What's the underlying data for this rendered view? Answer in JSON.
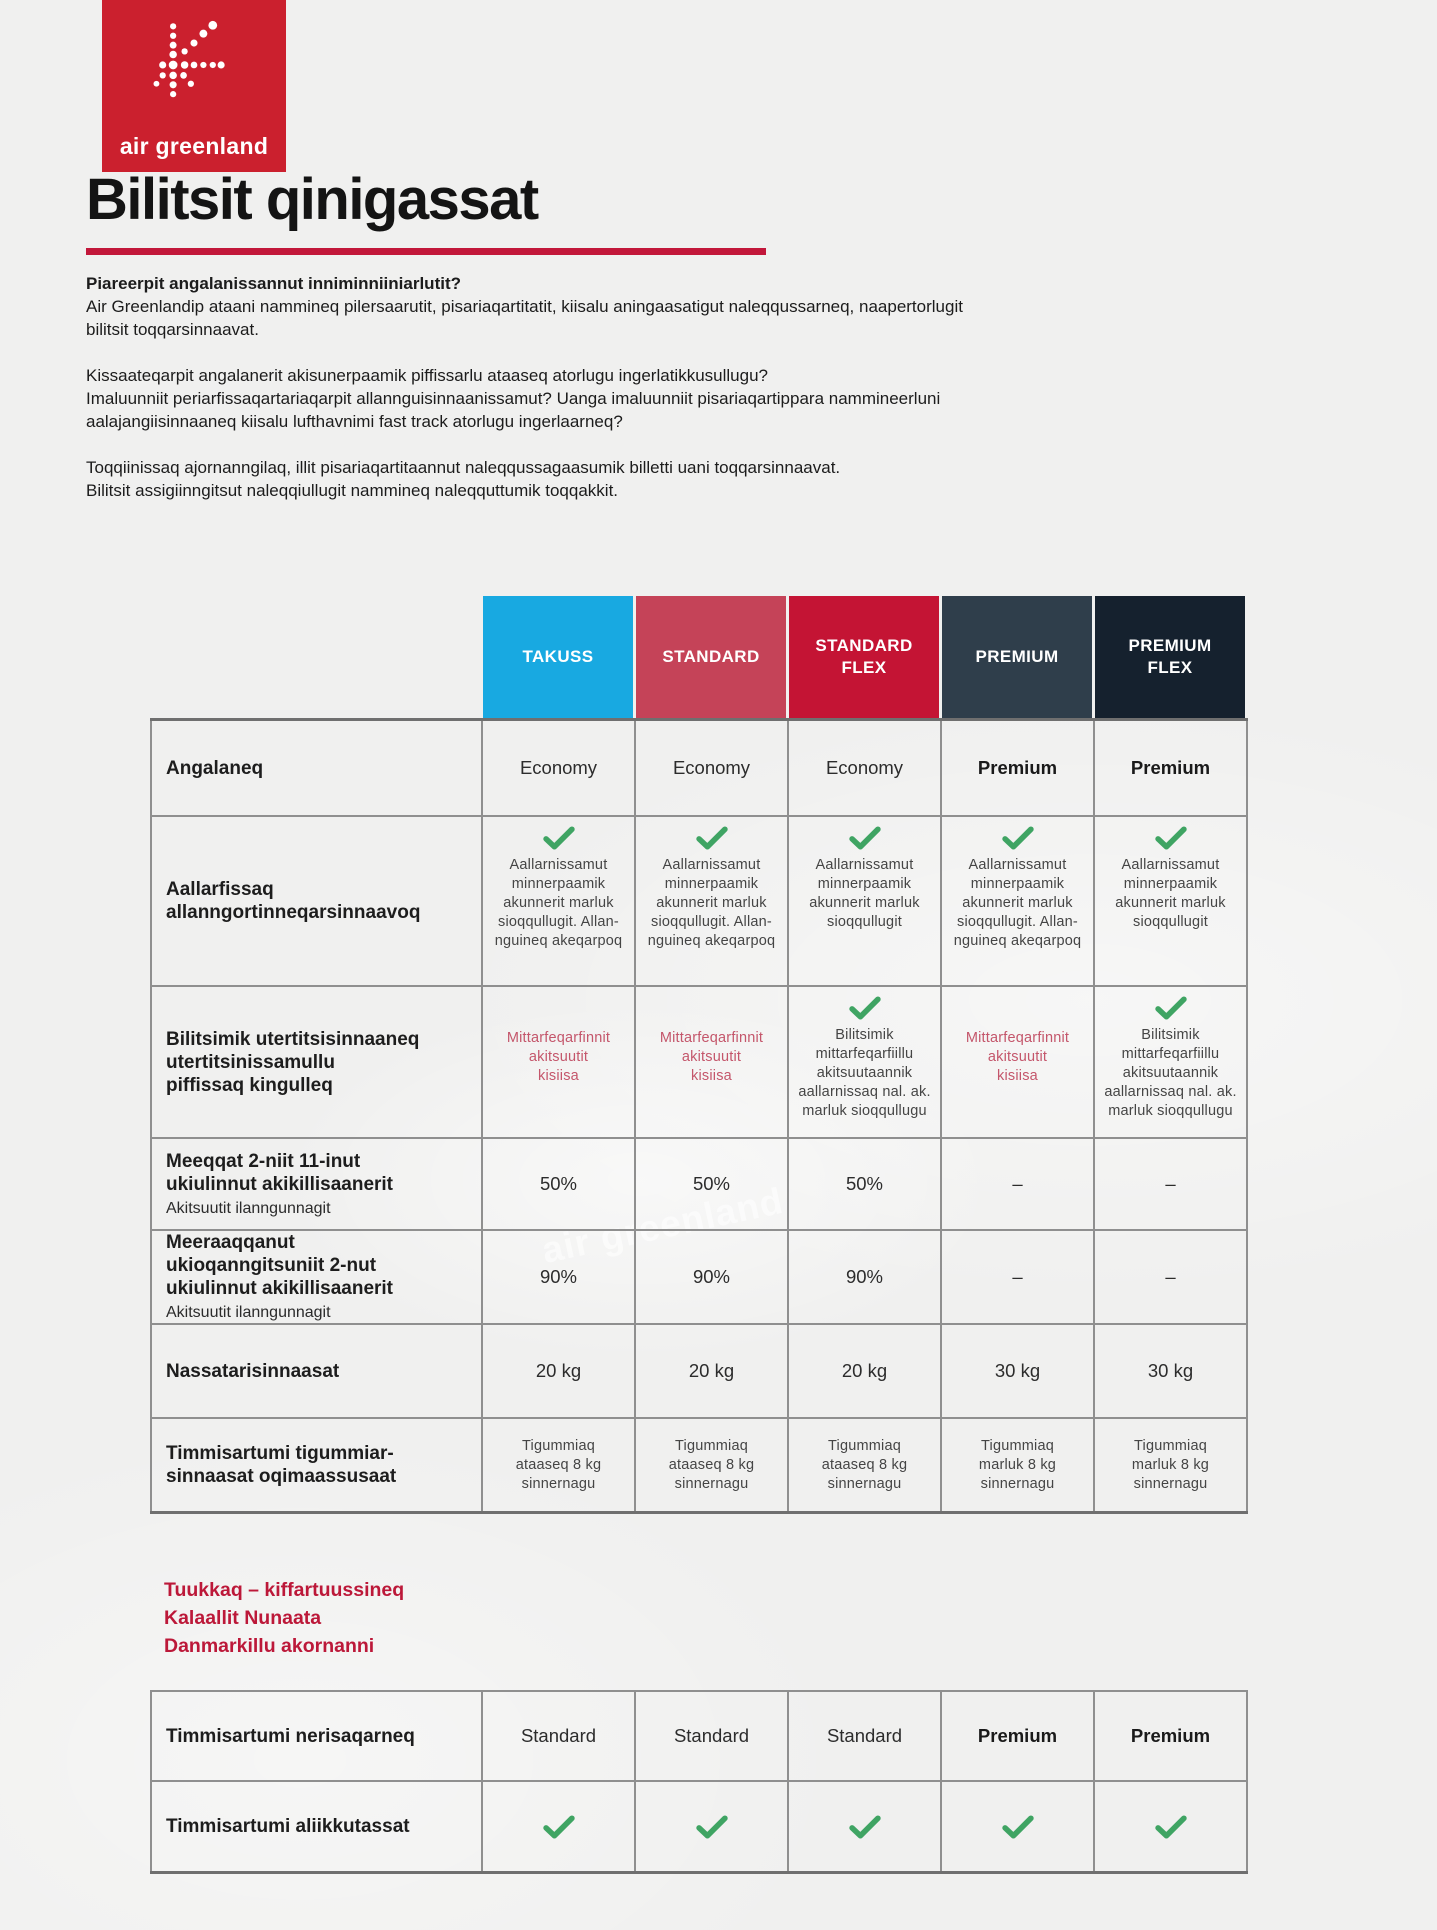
{
  "colors": {
    "brand_red": "#CB202E",
    "rule_red": "#C2173A",
    "check_green": "#3FA463",
    "cell_red": "#C4566B",
    "heading_red": "#BC1839",
    "border_gray": "#8F8F8F"
  },
  "logo": {
    "brand": "air greenland"
  },
  "header": {
    "title": "Bilitsit qinigassat"
  },
  "intro": {
    "heading": "Piareerpit angalanissannut inniminniiniarlutit?",
    "para1": "Air Greenlandip ataani nammineq pilersaarutit, pisariaqartitatit, kiisalu aningaasatigut naleqqussarneq, naapertorlugit\nbilitsit toqqarsinnaavat.",
    "para2": "Kissaateqarpit angalanerit akisunerpaamik piffissarlu ataaseq atorlugu ingerlatikkusullugu?\nImaluunniit periarfissaqartariaqarpit allannguisinnaanissamut? Uanga imaluunniit pisariaqartippara nammineerluni\naalajangiisinnaaneq kiisalu lufthavnimi fast track atorlugu ingerlaarneq?",
    "para3": "Toqqiinissaq ajornanngilaq, illit pisariaqartitaannut naleqqussagaasumik billetti uani toqqarsinnaavat.\nBilitsit assigiinngitsut naleqqiullugit nammineq naleqquttumik toqqakkit."
  },
  "plans": [
    {
      "label": "TAKUSS",
      "color": "#18A9E1"
    },
    {
      "label": "STANDARD",
      "color": "#C54358"
    },
    {
      "label": "STANDARD FLEX",
      "color": "#C41434"
    },
    {
      "label": "PREMIUM",
      "color": "#2F3E4B"
    },
    {
      "label": "PREMIUM FLEX",
      "color": "#15212E"
    }
  ],
  "table1": {
    "rows": [
      {
        "label": "Angalaneq",
        "cells": [
          {
            "type": "plain",
            "text": "Economy"
          },
          {
            "type": "plain",
            "text": "Economy"
          },
          {
            "type": "plain",
            "text": "Economy"
          },
          {
            "type": "bold",
            "text": "Premium"
          },
          {
            "type": "bold",
            "text": "Premium"
          }
        ]
      },
      {
        "label": "Aallarfissaq\nallanngortinneqarsinnaavoq",
        "cells": [
          {
            "type": "check_text",
            "text": "Aallarnissamut\nminnerpaamik\nakunnerit marluk\nsioqqullugit. Allan-\nnguineq akeqarpoq"
          },
          {
            "type": "check_text",
            "text": "Aallarnissamut\nminnerpaamik\nakunnerit marluk\nsioqqullugit. Allan-\nnguineq akeqarpoq"
          },
          {
            "type": "check_text",
            "text": "Aallarnissamut\nminnerpaamik\nakunnerit marluk\nsioqqullugit"
          },
          {
            "type": "check_text",
            "text": "Aallarnissamut\nminnerpaamik\nakunnerit marluk\nsioqqullugit. Allan-\nnguineq akeqarpoq"
          },
          {
            "type": "check_text",
            "text": "Aallarnissamut\nminnerpaamik\nakunnerit marluk\nsioqqullugit"
          }
        ]
      },
      {
        "label": "Bilitsimik utertitsisinnaaneq\nutertitsinissamullu\npiffissaq kingulleq",
        "cells": [
          {
            "type": "red",
            "text": "Mittarfeqarfinnit\nakitsuutit\nkisiisa"
          },
          {
            "type": "red",
            "text": "Mittarfeqarfinnit\nakitsuutit\nkisiisa"
          },
          {
            "type": "check_text",
            "text": "Bilitsimik\nmittarfeqarfiillu\nakitsuutaannik\naallarnissaq nal. ak.\nmarluk sioqqullugu"
          },
          {
            "type": "red",
            "text": "Mittarfeqarfinnit\nakitsuutit\nkisiisa"
          },
          {
            "type": "check_text",
            "text": "Bilitsimik\nmittarfeqarfiillu\nakitsuutaannik\naallarnissaq nal. ak.\nmarluk sioqqullugu"
          }
        ]
      },
      {
        "label": "Meeqqat 2-niit 11-inut\nukiulinnut akikillisaanerit",
        "sublabel": "Akitsuutit ilanngunnagit",
        "cells": [
          {
            "type": "plain",
            "text": "50%"
          },
          {
            "type": "plain",
            "text": "50%"
          },
          {
            "type": "plain",
            "text": "50%"
          },
          {
            "type": "dash",
            "text": "–"
          },
          {
            "type": "dash",
            "text": "–"
          }
        ]
      },
      {
        "label": "Meeraaqqanut\nukioqanngitsuniit 2-nut\nukiulinnut akikillisaanerit",
        "sublabel": "Akitsuutit ilanngunnagit",
        "cells": [
          {
            "type": "plain",
            "text": "90%"
          },
          {
            "type": "plain",
            "text": "90%"
          },
          {
            "type": "plain",
            "text": "90%"
          },
          {
            "type": "dash",
            "text": "–"
          },
          {
            "type": "dash",
            "text": "–"
          }
        ]
      },
      {
        "label": "Nassatarisinnaasat",
        "cells": [
          {
            "type": "plain",
            "text": "20 kg"
          },
          {
            "type": "plain",
            "text": "20 kg"
          },
          {
            "type": "plain",
            "text": "20 kg"
          },
          {
            "type": "plain",
            "text": "30 kg"
          },
          {
            "type": "plain",
            "text": "30 kg"
          }
        ]
      },
      {
        "label": "Timmisartumi tigummiar-\nsinnaasat oqimaassusaat",
        "cells": [
          {
            "type": "small",
            "text": "Tigummiaq\nataaseq 8 kg\nsinnernagu"
          },
          {
            "type": "small",
            "text": "Tigummiaq\nataaseq 8 kg\nsinnernagu"
          },
          {
            "type": "small",
            "text": "Tigummiaq\nataaseq 8 kg\nsinnernagu"
          },
          {
            "type": "small",
            "text": "Tigummiaq\nmarluk 8 kg\nsinnernagu"
          },
          {
            "type": "small",
            "text": "Tigummiaq\nmarluk 8 kg\nsinnernagu"
          }
        ]
      }
    ]
  },
  "section": {
    "heading": "Tuukkaq – kiffartuussineq\nKalaallit Nunaata\nDanmarkillu akornanni"
  },
  "table2": {
    "rows": [
      {
        "label": "Timmisartumi nerisaqarneq",
        "cells": [
          {
            "type": "plain",
            "text": "Standard"
          },
          {
            "type": "plain",
            "text": "Standard"
          },
          {
            "type": "plain",
            "text": "Standard"
          },
          {
            "type": "bold",
            "text": "Premium"
          },
          {
            "type": "bold",
            "text": "Premium"
          }
        ]
      },
      {
        "label": "Timmisartumi aliikkutassat",
        "cells": [
          {
            "type": "check",
            "text": ""
          },
          {
            "type": "check",
            "text": ""
          },
          {
            "type": "check",
            "text": ""
          },
          {
            "type": "check",
            "text": ""
          },
          {
            "type": "check",
            "text": ""
          }
        ]
      }
    ]
  },
  "watermark": "air greenland"
}
